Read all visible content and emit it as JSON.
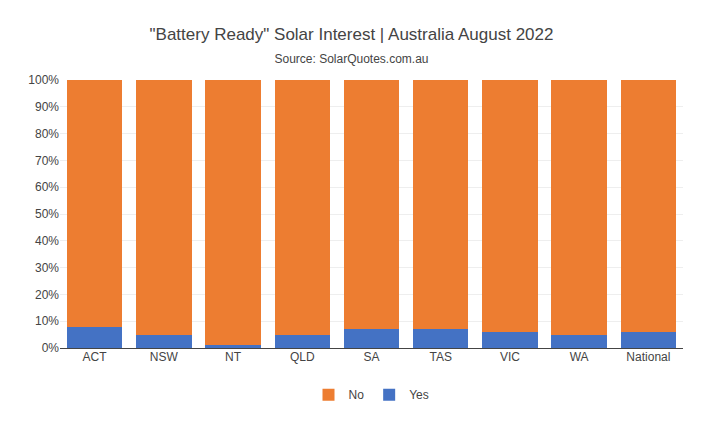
{
  "chart_data": {
    "type": "bar",
    "title": "\"Battery Ready\" Solar Interest | Australia August 2022",
    "subtitle": "Source: SolarQuotes.com.au",
    "categories": [
      "ACT",
      "NSW",
      "NT",
      "QLD",
      "SA",
      "TAS",
      "VIC",
      "WA",
      "National"
    ],
    "series": [
      {
        "name": "Yes",
        "color": "#4472C4",
        "values": [
          8,
          5,
          1,
          5,
          7,
          7,
          6,
          5,
          6
        ]
      },
      {
        "name": "No",
        "color": "#ED7D31",
        "values": [
          92,
          95,
          99,
          95,
          93,
          93,
          94,
          95,
          94
        ]
      }
    ],
    "stacked": true,
    "ylim": [
      0,
      100
    ],
    "yticks": [
      {
        "value": 0,
        "label": "0%"
      },
      {
        "value": 10,
        "label": "10%"
      },
      {
        "value": 20,
        "label": "20%"
      },
      {
        "value": 30,
        "label": "30%"
      },
      {
        "value": 40,
        "label": "40%"
      },
      {
        "value": 50,
        "label": "50%"
      },
      {
        "value": 60,
        "label": "60%"
      },
      {
        "value": 70,
        "label": "70%"
      },
      {
        "value": 80,
        "label": "80%"
      },
      {
        "value": 90,
        "label": "90%"
      },
      {
        "value": 100,
        "label": "100%"
      }
    ],
    "grid": true,
    "legend": "bottom"
  }
}
